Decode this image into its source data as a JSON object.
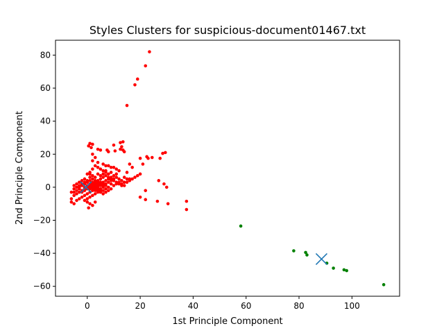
{
  "chart_data": {
    "type": "scatter",
    "title": "Styles Clusters for suspicious-document01467.txt",
    "xlabel": "1st Principle Component",
    "ylabel": "2nd Principle Component",
    "xlim": [
      -12,
      118
    ],
    "ylim": [
      -66,
      89
    ],
    "xticks": [
      0,
      20,
      40,
      60,
      80,
      100
    ],
    "yticks": [
      -60,
      -40,
      -20,
      0,
      20,
      40,
      60,
      80
    ],
    "grid": false,
    "series": [
      {
        "color": "#ff0000",
        "marker": "dot",
        "points": [
          [
            23.5,
            82
          ],
          [
            22,
            73.5
          ],
          [
            19,
            65.5
          ],
          [
            18,
            62
          ],
          [
            15,
            49.5
          ],
          [
            13.5,
            27.5
          ],
          [
            12.5,
            27
          ],
          [
            13,
            24.5
          ],
          [
            12.5,
            23
          ],
          [
            13.5,
            22.5
          ],
          [
            14,
            21.5
          ],
          [
            10,
            25.5
          ],
          [
            10.5,
            22
          ],
          [
            1,
            26.5
          ],
          [
            2,
            26
          ],
          [
            0.5,
            25
          ],
          [
            1.5,
            24
          ],
          [
            4,
            23
          ],
          [
            5,
            22.5
          ],
          [
            7.5,
            22.5
          ],
          [
            8,
            21.5
          ],
          [
            29.5,
            21
          ],
          [
            28.5,
            20.5
          ],
          [
            22.5,
            18.5
          ],
          [
            23,
            17.5
          ],
          [
            24.5,
            18
          ],
          [
            20,
            17.5
          ],
          [
            21,
            14
          ],
          [
            16,
            14
          ],
          [
            17,
            12
          ],
          [
            15,
            9
          ],
          [
            27.5,
            17.5
          ],
          [
            27,
            4
          ],
          [
            29,
            2
          ],
          [
            30,
            0
          ],
          [
            22,
            -2
          ],
          [
            20,
            -6
          ],
          [
            22,
            -7.5
          ],
          [
            26.5,
            -8.5
          ],
          [
            30.5,
            -10
          ],
          [
            37.5,
            -8.5
          ],
          [
            37.5,
            -13.5
          ],
          [
            2,
            20
          ],
          [
            3,
            18
          ],
          [
            2,
            16
          ],
          [
            4,
            15
          ],
          [
            6,
            14
          ],
          [
            7,
            13
          ],
          [
            8,
            13
          ],
          [
            9,
            12
          ],
          [
            10,
            12
          ],
          [
            11,
            11
          ],
          [
            12,
            10
          ],
          [
            11,
            8
          ],
          [
            9,
            9
          ],
          [
            8,
            8
          ],
          [
            7,
            9
          ],
          [
            6,
            10
          ],
          [
            5,
            11
          ],
          [
            4,
            12
          ],
          [
            3,
            13
          ],
          [
            2,
            11
          ],
          [
            1,
            9
          ],
          [
            0,
            8
          ],
          [
            1,
            6
          ],
          [
            2,
            5
          ],
          [
            3,
            4
          ],
          [
            4,
            3
          ],
          [
            5,
            2
          ],
          [
            6,
            1
          ],
          [
            7,
            2
          ],
          [
            8,
            3
          ],
          [
            9,
            4
          ],
          [
            10,
            5
          ],
          [
            11,
            6
          ],
          [
            12,
            5
          ],
          [
            13,
            4
          ],
          [
            14,
            6
          ],
          [
            15,
            5
          ],
          [
            16,
            5
          ],
          [
            -1,
            5
          ],
          [
            -2,
            4
          ],
          [
            -3,
            3
          ],
          [
            -4,
            2
          ],
          [
            -5,
            1
          ],
          [
            -5,
            -1
          ],
          [
            -6,
            -3
          ],
          [
            -5,
            -5
          ],
          [
            -6,
            -7
          ],
          [
            -6,
            -9
          ],
          [
            -5,
            -10
          ],
          [
            -4,
            -8
          ],
          [
            -3,
            -7
          ],
          [
            -2,
            -6
          ],
          [
            -1,
            -5
          ],
          [
            0,
            -4
          ],
          [
            1,
            -3
          ],
          [
            2,
            -2
          ],
          [
            3,
            -1
          ],
          [
            4,
            0
          ],
          [
            5,
            1
          ],
          [
            6,
            0
          ],
          [
            7,
            -1
          ],
          [
            5,
            -2
          ],
          [
            4,
            -3
          ],
          [
            3,
            -4
          ],
          [
            2,
            -5
          ],
          [
            1,
            -6
          ],
          [
            0,
            -7
          ],
          [
            -1,
            -8
          ],
          [
            0,
            -9
          ],
          [
            1,
            -10
          ],
          [
            0.5,
            -12.5
          ],
          [
            2,
            -11
          ],
          [
            3,
            -9
          ],
          [
            -3,
            0
          ],
          [
            -2,
            1
          ],
          [
            -1,
            2
          ],
          [
            0,
            3
          ],
          [
            1,
            2
          ],
          [
            2,
            1
          ],
          [
            3,
            0
          ],
          [
            4,
            -1
          ],
          [
            5,
            -3
          ],
          [
            6,
            -4
          ],
          [
            7,
            -3
          ],
          [
            8,
            -2
          ],
          [
            9,
            -1
          ],
          [
            6,
            3
          ],
          [
            7,
            4
          ],
          [
            8,
            5
          ],
          [
            9,
            6
          ],
          [
            10,
            7
          ],
          [
            11,
            3
          ],
          [
            12,
            2
          ],
          [
            13,
            1
          ],
          [
            14,
            3
          ],
          [
            -4,
            -4
          ],
          [
            -3,
            -3
          ],
          [
            -2,
            -2
          ],
          [
            -1,
            -1
          ],
          [
            0,
            0
          ],
          [
            1,
            1
          ],
          [
            2,
            2
          ],
          [
            3,
            3
          ],
          [
            4,
            4
          ],
          [
            5,
            5
          ],
          [
            6,
            6
          ],
          [
            7,
            7
          ],
          [
            8,
            6
          ],
          [
            9,
            5
          ],
          [
            10,
            4
          ],
          [
            3,
            6
          ],
          [
            2,
            7
          ],
          [
            1,
            8
          ],
          [
            4,
            8
          ],
          [
            5,
            7
          ],
          [
            6,
            8
          ],
          [
            7,
            10
          ],
          [
            -2,
            -3
          ],
          [
            -1,
            -2
          ],
          [
            0,
            -1
          ],
          [
            1,
            0
          ],
          [
            2,
            -1
          ],
          [
            3,
            -2
          ],
          [
            4,
            -2
          ],
          [
            5,
            -1
          ],
          [
            6,
            -2
          ],
          [
            -3,
            -1
          ],
          [
            -4,
            -2
          ],
          [
            -5,
            -3
          ],
          [
            -4,
            0
          ],
          [
            -3,
            1
          ],
          [
            -2,
            2
          ],
          [
            -1,
            3
          ],
          [
            0,
            4
          ],
          [
            1,
            4
          ],
          [
            2,
            3
          ],
          [
            3,
            2
          ],
          [
            4,
            1
          ],
          [
            -1,
            0
          ],
          [
            0,
            1
          ],
          [
            1,
            -1
          ],
          [
            2,
            0
          ],
          [
            3,
            1
          ],
          [
            4,
            2
          ],
          [
            5,
            3
          ],
          [
            6,
            2
          ],
          [
            7,
            1
          ],
          [
            8,
            0
          ],
          [
            9,
            2
          ],
          [
            10,
            1
          ],
          [
            11,
            2
          ],
          [
            12,
            3
          ],
          [
            13,
            2
          ],
          [
            14,
            1
          ],
          [
            15,
            3
          ],
          [
            16,
            4
          ],
          [
            17,
            5
          ],
          [
            18,
            6
          ],
          [
            19,
            7
          ],
          [
            20,
            8
          ]
        ]
      },
      {
        "color": "#008000",
        "marker": "dot",
        "points": [
          [
            58,
            -23.5
          ],
          [
            78,
            -38.5
          ],
          [
            82.5,
            -39.5
          ],
          [
            83,
            -41
          ],
          [
            90.5,
            -46
          ],
          [
            93,
            -49
          ],
          [
            97,
            -50
          ],
          [
            98,
            -50.5
          ],
          [
            112,
            -59
          ]
        ]
      }
    ],
    "centroids": {
      "color": "#1f77b4",
      "marker": "x",
      "points": [
        [
          -0.5,
          0
        ],
        [
          88.5,
          -43.5
        ]
      ]
    }
  }
}
